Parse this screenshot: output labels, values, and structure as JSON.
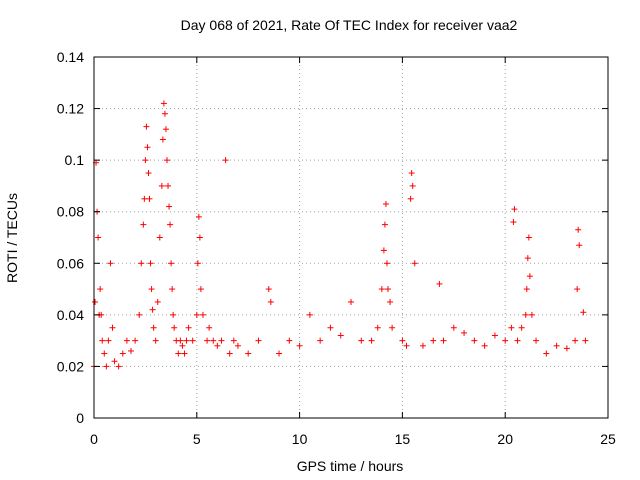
{
  "chart_data": {
    "type": "scatter",
    "title": "Day 068 of 2021, Rate Of TEC Index for receiver vaa2",
    "xlabel": "GPS time / hours",
    "ylabel": "ROTI / TECUs",
    "xlim": [
      0,
      25
    ],
    "ylim": [
      0,
      0.14
    ],
    "xticks": [
      "0",
      "5",
      "10",
      "15",
      "20",
      "25"
    ],
    "yticks": [
      "0",
      "0.02",
      "0.04",
      "0.06",
      "0.08",
      "0.1",
      "0.12",
      "0.14"
    ],
    "xtick_values": [
      0,
      5,
      10,
      15,
      20,
      25
    ],
    "ytick_values": [
      0,
      0.02,
      0.04,
      0.06,
      0.08,
      0.1,
      0.12,
      0.14
    ],
    "grid": true,
    "marker": "+",
    "color": "#ff0000",
    "series": [
      {
        "x": [
          0.0,
          0.05,
          0.1,
          0.15,
          0.2,
          0.25,
          0.3,
          0.35,
          0.4,
          0.5,
          0.6,
          0.7,
          0.8,
          0.9,
          1.0,
          1.2,
          1.4,
          1.6,
          1.8,
          2.0,
          2.2,
          2.3,
          2.4,
          2.45,
          2.5,
          2.55,
          2.6,
          2.65,
          2.7,
          2.75,
          2.8,
          2.85,
          2.9,
          3.0,
          3.1,
          3.2,
          3.3,
          3.35,
          3.4,
          3.45,
          3.5,
          3.55,
          3.6,
          3.65,
          3.7,
          3.75,
          3.8,
          3.85,
          3.9,
          4.0,
          4.1,
          4.2,
          4.3,
          4.4,
          4.5,
          4.6,
          4.8,
          5.0,
          5.05,
          5.1,
          5.15,
          5.2,
          5.3,
          5.5,
          5.6,
          5.8,
          6.0,
          6.2,
          6.4,
          6.6,
          6.8,
          7.0,
          7.5,
          8.0,
          8.5,
          8.6,
          9.0,
          9.5,
          10.0,
          10.5,
          11.0,
          11.5,
          12.0,
          12.5,
          13.0,
          13.5,
          13.8,
          14.0,
          14.1,
          14.15,
          14.2,
          14.25,
          14.3,
          14.4,
          14.5,
          15.0,
          15.2,
          15.4,
          15.45,
          15.5,
          15.6,
          16.0,
          16.5,
          16.8,
          17.0,
          17.5,
          18.0,
          18.5,
          19.0,
          19.5,
          20.0,
          20.3,
          20.4,
          20.45,
          20.6,
          20.8,
          21.0,
          21.05,
          21.1,
          21.15,
          21.2,
          21.3,
          21.5,
          22.0,
          22.5,
          23.0,
          23.4,
          23.5,
          23.55,
          23.6,
          23.8,
          23.9
        ],
        "y": [
          0.02,
          0.045,
          0.099,
          0.08,
          0.07,
          0.04,
          0.05,
          0.04,
          0.03,
          0.025,
          0.02,
          0.03,
          0.06,
          0.035,
          0.022,
          0.02,
          0.025,
          0.03,
          0.026,
          0.03,
          0.04,
          0.06,
          0.075,
          0.085,
          0.1,
          0.113,
          0.105,
          0.095,
          0.085,
          0.06,
          0.05,
          0.042,
          0.035,
          0.03,
          0.045,
          0.07,
          0.09,
          0.108,
          0.122,
          0.118,
          0.112,
          0.1,
          0.09,
          0.082,
          0.075,
          0.06,
          0.05,
          0.04,
          0.035,
          0.03,
          0.025,
          0.03,
          0.028,
          0.025,
          0.03,
          0.035,
          0.03,
          0.04,
          0.06,
          0.078,
          0.07,
          0.05,
          0.04,
          0.03,
          0.035,
          0.03,
          0.028,
          0.03,
          0.1,
          0.025,
          0.03,
          0.028,
          0.025,
          0.03,
          0.05,
          0.045,
          0.025,
          0.03,
          0.028,
          0.04,
          0.03,
          0.035,
          0.032,
          0.045,
          0.03,
          0.03,
          0.035,
          0.05,
          0.065,
          0.075,
          0.083,
          0.06,
          0.05,
          0.045,
          0.035,
          0.03,
          0.028,
          0.085,
          0.095,
          0.09,
          0.06,
          0.028,
          0.03,
          0.052,
          0.03,
          0.035,
          0.033,
          0.03,
          0.028,
          0.032,
          0.03,
          0.035,
          0.076,
          0.081,
          0.03,
          0.035,
          0.04,
          0.05,
          0.062,
          0.07,
          0.055,
          0.04,
          0.03,
          0.025,
          0.028,
          0.027,
          0.03,
          0.05,
          0.073,
          0.067,
          0.041,
          0.03
        ]
      }
    ]
  }
}
